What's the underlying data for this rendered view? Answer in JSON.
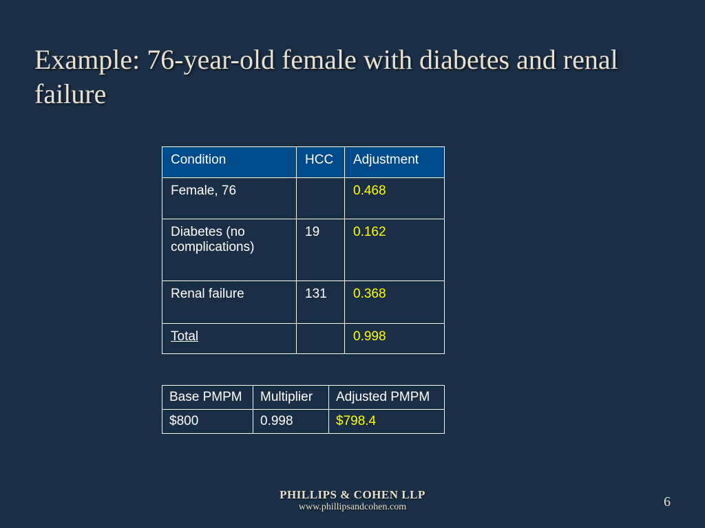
{
  "title": "Example: 76-year-old female with diabetes and renal failure",
  "table1": {
    "headers": {
      "condition": "Condition",
      "hcc": "HCC",
      "adjustment": "Adjustment"
    },
    "rows": [
      {
        "condition": "Female, 76",
        "hcc": "",
        "adjustment": "0.468"
      },
      {
        "condition": "Diabetes (no complications)",
        "hcc": "19",
        "adjustment": "0.162"
      },
      {
        "condition": "Renal failure",
        "hcc": "131",
        "adjustment": "0.368"
      },
      {
        "condition": "Total",
        "hcc": "",
        "adjustment": "0.998"
      }
    ]
  },
  "table2": {
    "headers": {
      "base": "Base PMPM",
      "multiplier": "Multiplier",
      "adjusted": "Adjusted PMPM"
    },
    "row": {
      "base": "$800",
      "multiplier": "0.998",
      "adjusted": "$798.4"
    }
  },
  "footer": {
    "firm": "PHILLIPS & COHEN LLP",
    "url": "www.phillipsandcohen.com"
  },
  "page_number": "6",
  "style": {
    "background_color": "#1a2f45",
    "title_color": "#e8e0d0",
    "title_fontsize": 40,
    "header_bg": "#004a8a",
    "cell_text_color": "#ffffff",
    "highlight_color": "#ffff00",
    "border_color": "#ffffff",
    "table_fontsize": 19,
    "table1_col_widths": [
      195,
      70,
      145
    ],
    "table2_col_widths": [
      132,
      110,
      168
    ]
  }
}
